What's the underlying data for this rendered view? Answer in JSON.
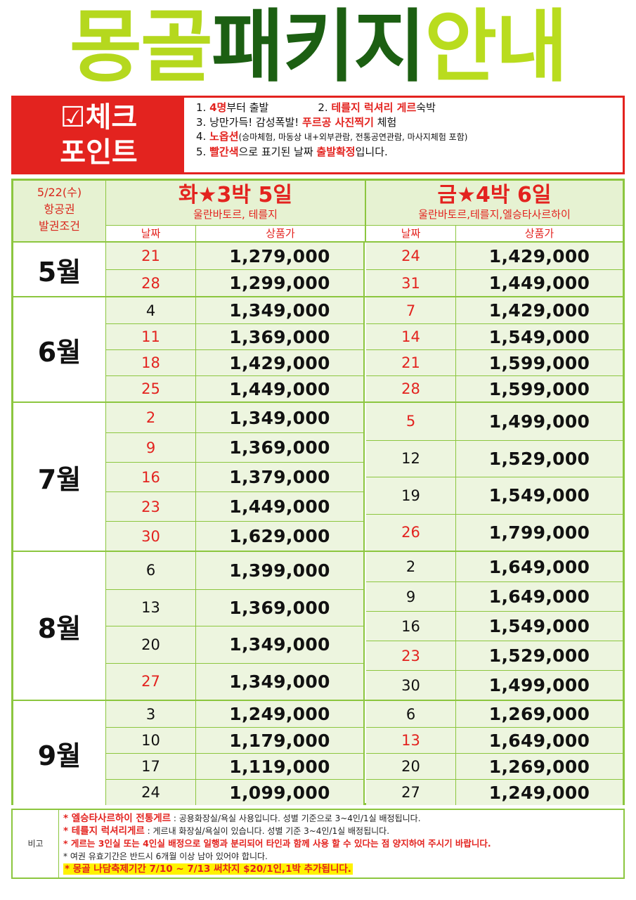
{
  "title": {
    "part1": "몽골",
    "part2": "패키지",
    "part3": "안내"
  },
  "checkpoint": {
    "badge_line1": "☑체크",
    "badge_line2": "포인트",
    "items": {
      "i1_prefix": "1. ",
      "i1_red": "4명",
      "i1_rest": "부터 출발",
      "i2_prefix": "2. ",
      "i2_red": "테를지 럭셔리 게르",
      "i2_rest": "숙박",
      "i3_prefix": "3. 낭만가득! 감성폭발! ",
      "i3_red": "푸르공 사진찍기",
      "i3_rest": " 체험",
      "i4_prefix": "4. ",
      "i4_red": "노옵션",
      "i4_rest": "(승마체험, 마동상 내+외부관람, 전통공연관람, 마사지체험 포함)",
      "i5_prefix": "5. ",
      "i5_red": "빨간색",
      "i5_mid": "으로 표기된 날짜 ",
      "i5_red2": "출발확정",
      "i5_rest": "입니다."
    }
  },
  "table": {
    "ticket_line1": "5/22(수)",
    "ticket_line2": "항공권",
    "ticket_line3": "발권조건",
    "left": {
      "title": "화★3박 5일",
      "subtitle": "울란바토르, 테를지",
      "col_date": "날짜",
      "col_price": "상품가"
    },
    "right": {
      "title": "금★4박 6일",
      "subtitle": "울란바토르,테를지,엘승타사르하이",
      "col_date": "날짜",
      "col_price": "상품가"
    },
    "months": [
      {
        "label": "5월",
        "left": [
          {
            "date": "21",
            "price": "1,279,000",
            "confirmed": true
          },
          {
            "date": "28",
            "price": "1,299,000",
            "confirmed": true
          }
        ],
        "right": [
          {
            "date": "24",
            "price": "1,429,000",
            "confirmed": true
          },
          {
            "date": "31",
            "price": "1,449,000",
            "confirmed": true
          }
        ]
      },
      {
        "label": "6월",
        "left": [
          {
            "date": "4",
            "price": "1,349,000",
            "confirmed": false
          },
          {
            "date": "11",
            "price": "1,369,000",
            "confirmed": true
          },
          {
            "date": "18",
            "price": "1,429,000",
            "confirmed": true
          },
          {
            "date": "25",
            "price": "1,449,000",
            "confirmed": true
          }
        ],
        "right": [
          {
            "date": "7",
            "price": "1,429,000",
            "confirmed": true
          },
          {
            "date": "14",
            "price": "1,549,000",
            "confirmed": true
          },
          {
            "date": "21",
            "price": "1,599,000",
            "confirmed": true
          },
          {
            "date": "28",
            "price": "1,599,000",
            "confirmed": true
          }
        ]
      },
      {
        "label": "7월",
        "left": [
          {
            "date": "2",
            "price": "1,349,000",
            "confirmed": true
          },
          {
            "date": "9",
            "price": "1,369,000",
            "confirmed": true
          },
          {
            "date": "16",
            "price": "1,379,000",
            "confirmed": true
          },
          {
            "date": "23",
            "price": "1,449,000",
            "confirmed": true
          },
          {
            "date": "30",
            "price": "1,629,000",
            "confirmed": true
          }
        ],
        "right": [
          {
            "date": "5",
            "price": "1,499,000",
            "confirmed": true
          },
          {
            "date": "12",
            "price": "1,529,000",
            "confirmed": false
          },
          {
            "date": "19",
            "price": "1,549,000",
            "confirmed": false
          },
          {
            "date": "26",
            "price": "1,799,000",
            "confirmed": true
          }
        ]
      },
      {
        "label": "8월",
        "left": [
          {
            "date": "6",
            "price": "1,399,000",
            "confirmed": false
          },
          {
            "date": "13",
            "price": "1,369,000",
            "confirmed": false
          },
          {
            "date": "20",
            "price": "1,349,000",
            "confirmed": false
          },
          {
            "date": "27",
            "price": "1,349,000",
            "confirmed": true
          }
        ],
        "right": [
          {
            "date": "2",
            "price": "1,649,000",
            "confirmed": false
          },
          {
            "date": "9",
            "price": "1,649,000",
            "confirmed": false
          },
          {
            "date": "16",
            "price": "1,549,000",
            "confirmed": false
          },
          {
            "date": "23",
            "price": "1,529,000",
            "confirmed": true
          },
          {
            "date": "30",
            "price": "1,499,000",
            "confirmed": false
          }
        ]
      },
      {
        "label": "9월",
        "left": [
          {
            "date": "3",
            "price": "1,249,000",
            "confirmed": false
          },
          {
            "date": "10",
            "price": "1,179,000",
            "confirmed": false
          },
          {
            "date": "17",
            "price": "1,119,000",
            "confirmed": false
          },
          {
            "date": "24",
            "price": "1,099,000",
            "confirmed": false
          }
        ],
        "right": [
          {
            "date": "6",
            "price": "1,269,000",
            "confirmed": false
          },
          {
            "date": "13",
            "price": "1,649,000",
            "confirmed": true
          },
          {
            "date": "20",
            "price": "1,269,000",
            "confirmed": false
          },
          {
            "date": "27",
            "price": "1,249,000",
            "confirmed": false
          }
        ]
      }
    ]
  },
  "notes": {
    "label": "비고",
    "n1_red": "* 엘승타사르하이 전통게르",
    "n1_rest": " : 공용화장실/욕실 사용입니다. 성별 기준으로 3~4인/1실 배정됩니다.",
    "n2_red": "* 테를지 럭셔리게르",
    "n2_rest": " : 게르내 화장실/욕실이 있습니다. 성별 기준 3~4인/1실 배정됩니다.",
    "n3": "* 게르는 3인실 또는 4인실 배정으로 일행과 분리되어 타인과 함께 사용 할 수 있다는 점 양지하여 주시기 바랍니다.",
    "n4": "* 여권 유효기간은 반드시 6개월 이상 남아 있어야 합니다.",
    "n5": "* 몽골 나담축제기간 7/10 ~ 7/13 써차지 $20/1인,1박 추가됩니다."
  },
  "colors": {
    "red": "#e3231f",
    "green_border": "#8cc63f",
    "row_bg": "#edf5df",
    "title_light": "#b5d81e",
    "title_dark": "#1c5f12"
  }
}
